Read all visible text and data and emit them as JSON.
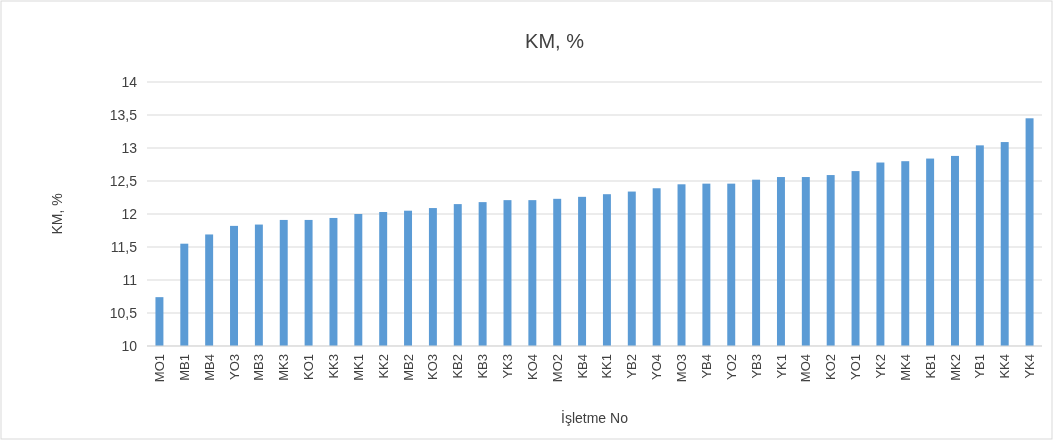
{
  "chart_data": {
    "type": "bar",
    "title": "KM, %",
    "xlabel": "İşletme No",
    "ylabel": "KM, %",
    "categories": [
      "MO1",
      "MB1",
      "MB4",
      "YO3",
      "MB3",
      "MK3",
      "KO1",
      "KK3",
      "MK1",
      "KK2",
      "MB2",
      "KO3",
      "KB2",
      "KB3",
      "YK3",
      "KO4",
      "MO2",
      "KB4",
      "KK1",
      "YB2",
      "YO4",
      "MO3",
      "YB4",
      "YO2",
      "YB3",
      "YK1",
      "MO4",
      "KO2",
      "YO1",
      "YK2",
      "MK4",
      "KB1",
      "MK2",
      "YB1",
      "KK4",
      "YK4"
    ],
    "values": [
      10.74,
      11.55,
      11.69,
      11.82,
      11.84,
      11.91,
      11.91,
      11.94,
      12.0,
      12.03,
      12.05,
      12.09,
      12.15,
      12.18,
      12.21,
      12.21,
      12.23,
      12.26,
      12.3,
      12.34,
      12.39,
      12.45,
      12.46,
      12.46,
      12.52,
      12.56,
      12.56,
      12.59,
      12.65,
      12.78,
      12.8,
      12.84,
      12.88,
      13.04,
      13.09,
      13.45
    ],
    "color": "#5b9bd5",
    "ylim": [
      10,
      14
    ],
    "yticks": [
      10,
      {
        "value": 10.5,
        "label": "10,5"
      },
      11,
      {
        "value": 11.5,
        "label": "11,5"
      },
      12,
      {
        "value": 12.5,
        "label": "12,5"
      },
      13,
      {
        "value": 13.5,
        "label": "13,5"
      },
      14
    ],
    "grid": "y"
  }
}
